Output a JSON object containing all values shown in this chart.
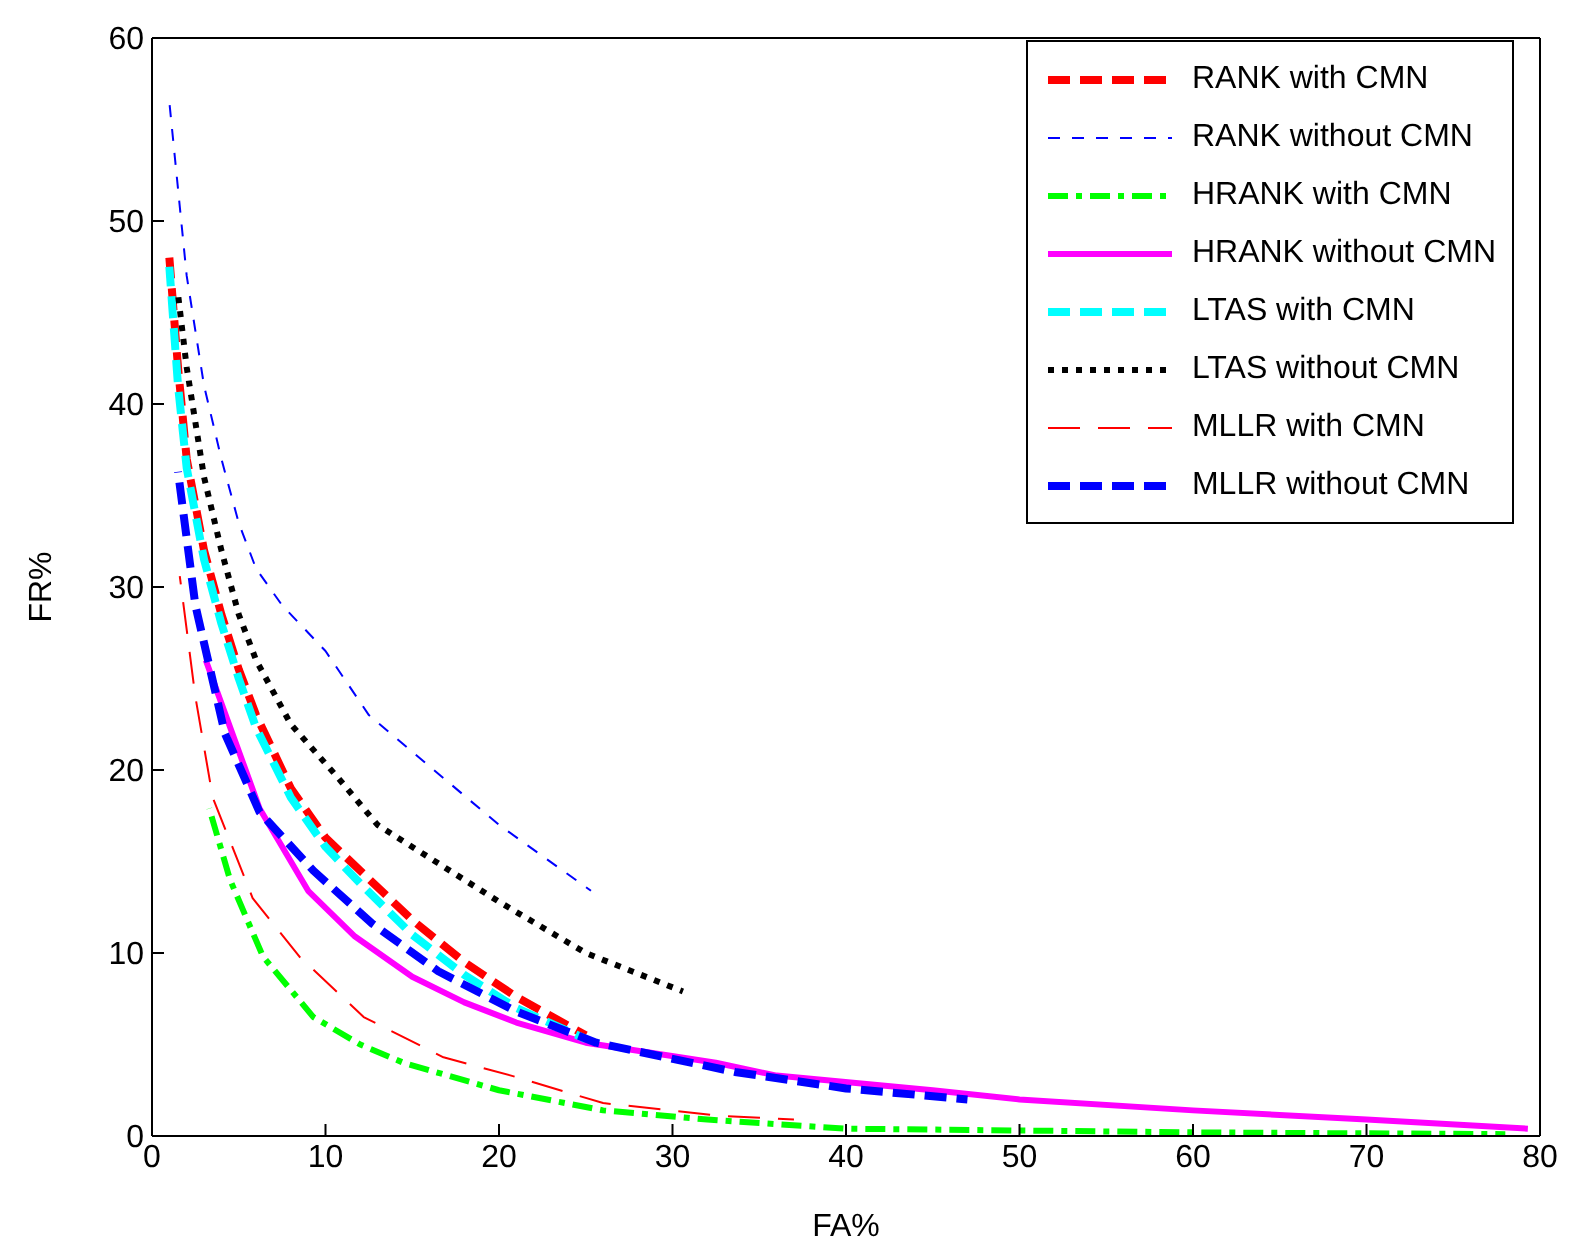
{
  "chart_data": {
    "type": "line",
    "xlabel": "FA%",
    "ylabel": "FR%",
    "xlim": [
      0,
      80
    ],
    "xticks": [
      0,
      10,
      20,
      30,
      40,
      50,
      60,
      70,
      80
    ],
    "ylim": [
      0,
      60
    ],
    "yticks": [
      0,
      10,
      20,
      30,
      40,
      50,
      60
    ],
    "grid": false,
    "legend": "top right",
    "marker": "none",
    "series": [
      {
        "name": "RANK with CMN",
        "color": "#ff0000",
        "line_style": "dashed",
        "x": [
          1,
          1.5,
          2,
          3,
          4,
          5,
          6,
          8,
          10,
          12,
          15,
          18,
          21,
          25
        ],
        "values": [
          48,
          42,
          37,
          32,
          28.5,
          25.5,
          23,
          19,
          16.3,
          14.5,
          11.8,
          9.5,
          7.6,
          5.5
        ]
      },
      {
        "name": "RANK without CMN",
        "color": "#0000ff",
        "line_style": "dashed",
        "x": [
          1,
          2,
          3,
          4,
          5,
          6,
          7.5,
          10,
          12.5,
          15,
          20,
          25.3
        ],
        "values": [
          56.5,
          47,
          41,
          37,
          33.5,
          31,
          29,
          26.5,
          23,
          21,
          17,
          13.4
        ]
      },
      {
        "name": "HRANK with CMN",
        "color": "#00ff00",
        "line_style": "dashdot",
        "x": [
          3.3,
          4.5,
          6.4,
          9.3,
          12,
          14.5,
          20,
          26,
          32,
          40,
          50,
          60,
          78
        ],
        "values": [
          17.9,
          14,
          9.8,
          6.5,
          5,
          4,
          2.5,
          1.4,
          0.9,
          0.4,
          0.3,
          0.2,
          0.1
        ]
      },
      {
        "name": "HRANK without CMN",
        "color": "#ff00ff",
        "line_style": "solid",
        "x": [
          3.1,
          6.2,
          9,
          11.7,
          15,
          18,
          21,
          25,
          32.5,
          36,
          45,
          50,
          60,
          70,
          79.3
        ],
        "values": [
          26,
          17.9,
          13.4,
          10.9,
          8.7,
          7.3,
          6.2,
          5.1,
          4,
          3.3,
          2.5,
          2,
          1.4,
          0.9,
          0.4
        ]
      },
      {
        "name": "LTAS with CMN",
        "color": "#00ffff",
        "line_style": "dashed",
        "x": [
          1,
          1.5,
          2,
          3,
          4,
          5,
          6,
          8,
          10,
          12,
          15,
          18,
          21,
          25
        ],
        "values": [
          47.5,
          41,
          36.5,
          31.5,
          28,
          25,
          22.3,
          18.5,
          15.8,
          13.8,
          11,
          8.8,
          7,
          5.3
        ]
      },
      {
        "name": "LTAS without CMN",
        "color": "#000000",
        "line_style": "dotted",
        "x": [
          1.5,
          2,
          3,
          4,
          5,
          6,
          8,
          10.7,
          13,
          16.5,
          20,
          25,
          30.6
        ],
        "values": [
          46,
          42,
          36,
          32,
          28.5,
          26,
          22.5,
          19.6,
          17,
          14.9,
          12.8,
          10,
          7.9
        ]
      },
      {
        "name": "MLLR with CMN",
        "color": "#ff0000",
        "line_style": "longdash",
        "x": [
          1.6,
          2.5,
          3.5,
          5.8,
          8.5,
          12.2,
          16.8,
          20.7,
          26,
          32.8,
          37
        ],
        "values": [
          30.6,
          24,
          18.5,
          13,
          9.8,
          6.5,
          4.3,
          3.3,
          1.8,
          1.1,
          0.9
        ]
      },
      {
        "name": "MLLR without CMN",
        "color": "#0000ff",
        "line_style": "dashed",
        "x": [
          1.5,
          2.5,
          4.2,
          6.2,
          9.3,
          12.7,
          16.5,
          21,
          25.6,
          33.6,
          40,
          47
        ],
        "values": [
          36.3,
          29,
          22,
          17.7,
          14.5,
          11.6,
          9,
          6.8,
          5.1,
          3.5,
          2.6,
          2
        ]
      }
    ]
  }
}
